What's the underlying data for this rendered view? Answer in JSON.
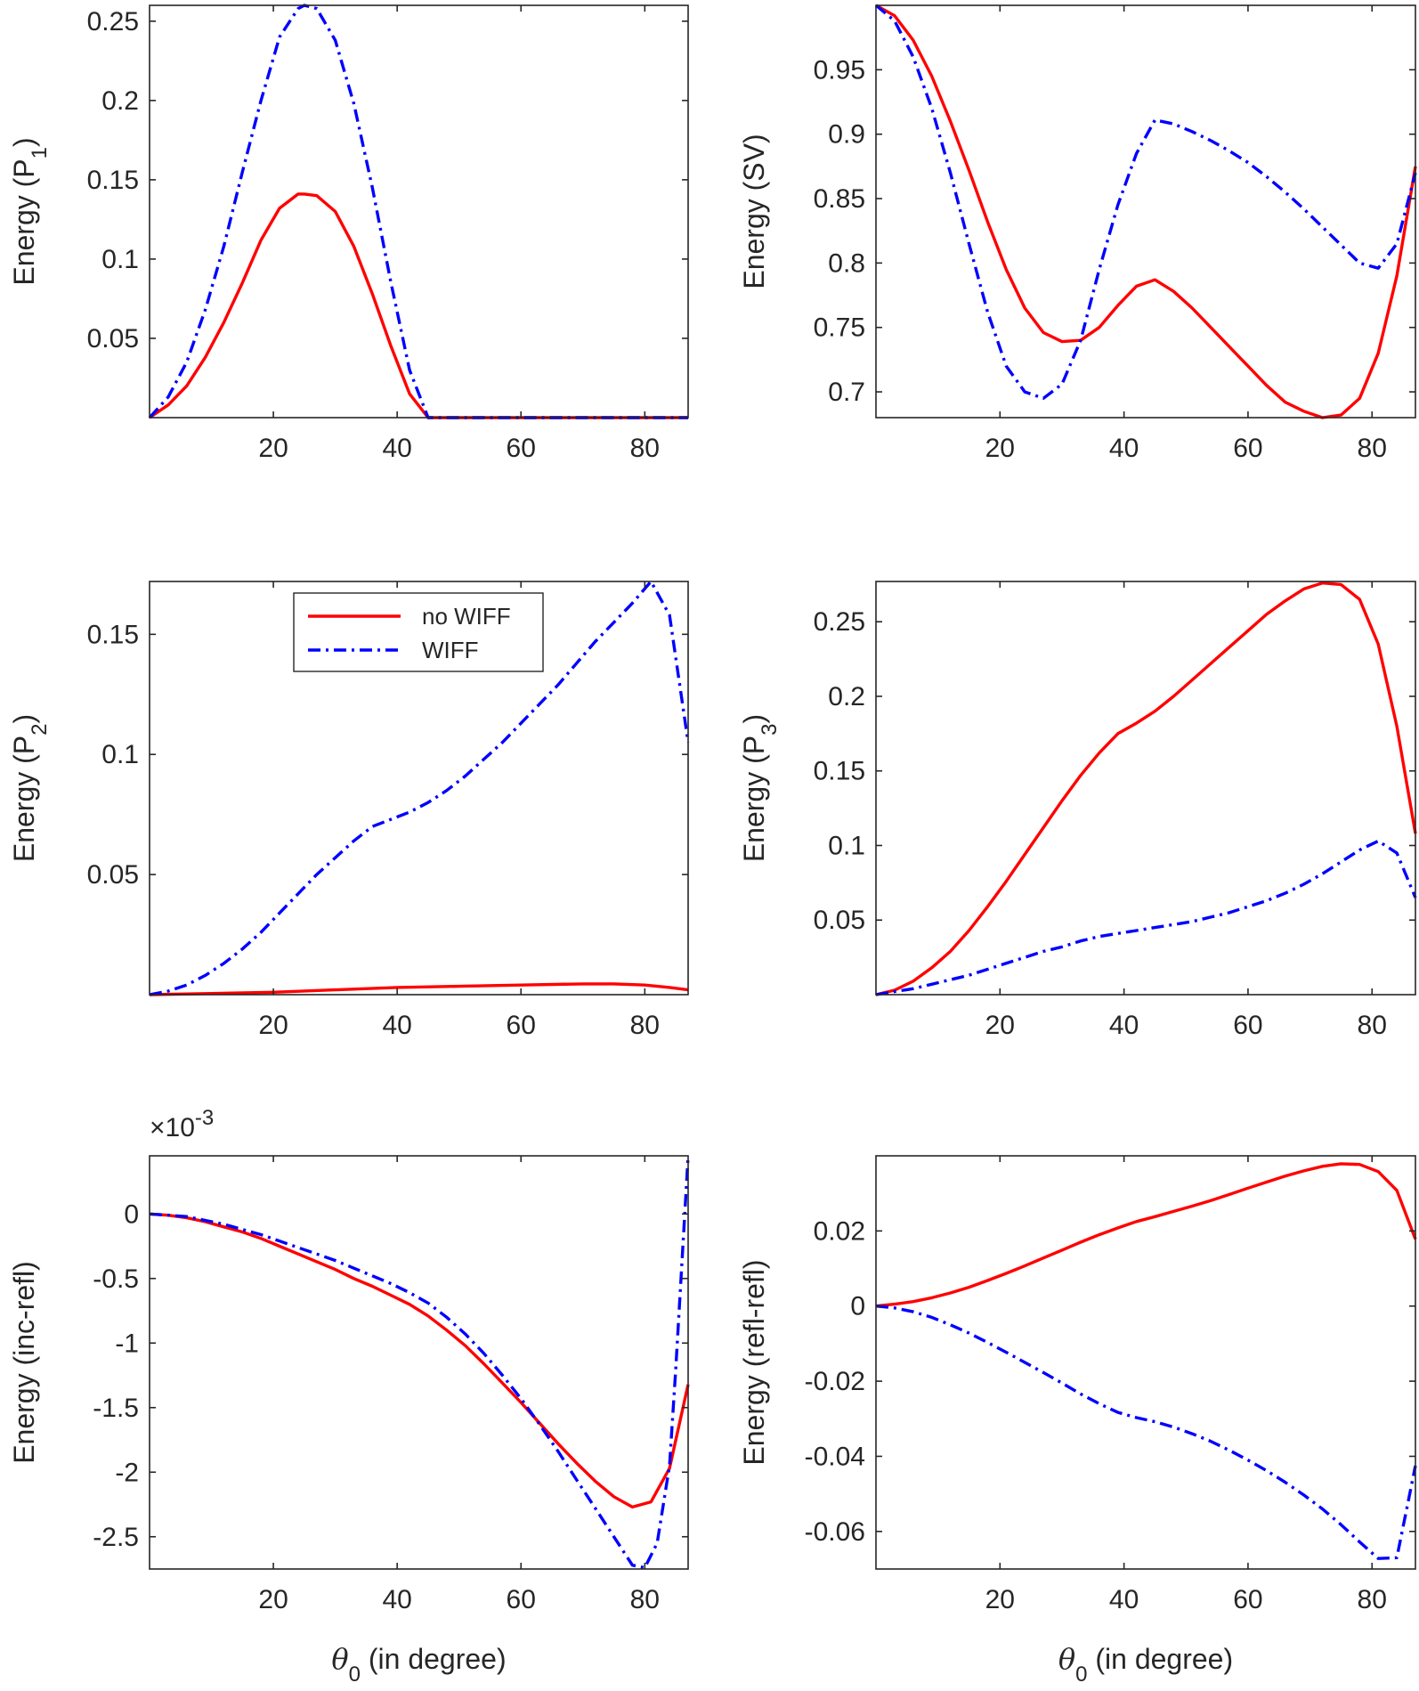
{
  "legend": {
    "entries": [
      {
        "label": "no WIFF",
        "color": "#ff0000",
        "style": "solid"
      },
      {
        "label": "WIFF",
        "color": "#0000ff",
        "style": "dashdot"
      }
    ],
    "placement": "top-center of panel 3"
  },
  "chart_data": [
    {
      "type": "line",
      "title": "",
      "xlabel": "",
      "ylabel": "Energy (P1)",
      "ylabel_parts": [
        "Energy (P",
        "1",
        ")"
      ],
      "xlim": [
        0,
        87
      ],
      "ylim": [
        0,
        0.26
      ],
      "xticks": [
        20,
        40,
        60,
        80
      ],
      "xtick_labels": [
        "20",
        "40",
        "60",
        "80"
      ],
      "yticks": [
        0.05,
        0.1,
        0.15,
        0.2,
        0.25
      ],
      "ytick_labels": [
        "0.05",
        "0.1",
        "0.15",
        "0.2",
        "0.25"
      ],
      "series": [
        {
          "name": "no WIFF",
          "x": [
            0,
            3,
            6,
            9,
            12,
            15,
            18,
            21,
            24,
            25,
            27,
            30,
            33,
            36,
            39,
            42,
            45,
            87
          ],
          "y": [
            0,
            0.008,
            0.02,
            0.038,
            0.06,
            0.085,
            0.112,
            0.132,
            0.141,
            0.141,
            0.14,
            0.13,
            0.108,
            0.078,
            0.045,
            0.015,
            0,
            0
          ]
        },
        {
          "name": "WIFF",
          "x": [
            0,
            3,
            6,
            9,
            12,
            15,
            18,
            21,
            24,
            25,
            27,
            30,
            33,
            36,
            39,
            42,
            45,
            87
          ],
          "y": [
            0,
            0.013,
            0.035,
            0.068,
            0.108,
            0.155,
            0.2,
            0.24,
            0.258,
            0.26,
            0.258,
            0.238,
            0.198,
            0.145,
            0.085,
            0.03,
            0,
            0
          ]
        }
      ]
    },
    {
      "type": "line",
      "title": "",
      "xlabel": "",
      "ylabel": "Energy (SV)",
      "ylabel_parts": [
        "Energy (SV)",
        "",
        ""
      ],
      "xlim": [
        0,
        87
      ],
      "ylim": [
        0.68,
        1.0
      ],
      "xticks": [
        20,
        40,
        60,
        80
      ],
      "xtick_labels": [
        "20",
        "40",
        "60",
        "80"
      ],
      "yticks": [
        0.7,
        0.75,
        0.8,
        0.85,
        0.9,
        0.95
      ],
      "ytick_labels": [
        "0.7",
        "0.75",
        "0.8",
        "0.85",
        "0.9",
        "0.95"
      ],
      "series": [
        {
          "name": "no WIFF",
          "x": [
            0,
            3,
            6,
            9,
            12,
            15,
            18,
            21,
            24,
            27,
            30,
            33,
            36,
            39,
            42,
            45,
            48,
            51,
            54,
            57,
            60,
            63,
            66,
            69,
            72,
            75,
            78,
            81,
            84,
            87
          ],
          "y": [
            1.0,
            0.992,
            0.973,
            0.945,
            0.91,
            0.872,
            0.832,
            0.795,
            0.765,
            0.746,
            0.739,
            0.74,
            0.75,
            0.767,
            0.782,
            0.787,
            0.778,
            0.765,
            0.75,
            0.735,
            0.72,
            0.705,
            0.692,
            0.685,
            0.68,
            0.682,
            0.695,
            0.73,
            0.79,
            0.875
          ]
        },
        {
          "name": "WIFF",
          "x": [
            0,
            3,
            6,
            9,
            12,
            15,
            18,
            21,
            24,
            27,
            30,
            33,
            36,
            39,
            42,
            45,
            48,
            51,
            54,
            57,
            60,
            63,
            66,
            69,
            72,
            75,
            78,
            81,
            84,
            87
          ],
          "y": [
            1.0,
            0.988,
            0.96,
            0.92,
            0.87,
            0.815,
            0.762,
            0.72,
            0.7,
            0.695,
            0.706,
            0.74,
            0.795,
            0.845,
            0.885,
            0.911,
            0.908,
            0.902,
            0.895,
            0.887,
            0.878,
            0.867,
            0.855,
            0.842,
            0.828,
            0.814,
            0.8,
            0.796,
            0.815,
            0.87
          ]
        }
      ]
    },
    {
      "type": "line",
      "title": "",
      "xlabel": "",
      "ylabel": "Energy (P2)",
      "ylabel_parts": [
        "Energy (P",
        "2",
        ")"
      ],
      "xlim": [
        0,
        87
      ],
      "ylim": [
        0,
        0.172
      ],
      "xticks": [
        20,
        40,
        60,
        80
      ],
      "xtick_labels": [
        "20",
        "40",
        "60",
        "80"
      ],
      "yticks": [
        0.05,
        0.1,
        0.15
      ],
      "ytick_labels": [
        "0.05",
        "0.1",
        "0.15"
      ],
      "series": [
        {
          "name": "no WIFF",
          "x": [
            0,
            10,
            20,
            30,
            40,
            50,
            60,
            70,
            75,
            80,
            84,
            87
          ],
          "y": [
            0,
            0.0005,
            0.001,
            0.002,
            0.003,
            0.0035,
            0.004,
            0.0045,
            0.0045,
            0.004,
            0.003,
            0.002
          ]
        },
        {
          "name": "WIFF",
          "x": [
            0,
            3,
            6,
            9,
            12,
            15,
            18,
            21,
            24,
            27,
            30,
            33,
            36,
            39,
            42,
            45,
            48,
            51,
            54,
            57,
            60,
            63,
            66,
            69,
            72,
            75,
            78,
            81,
            84,
            87
          ],
          "y": [
            0,
            0.0015,
            0.004,
            0.008,
            0.013,
            0.019,
            0.026,
            0.034,
            0.042,
            0.05,
            0.057,
            0.064,
            0.07,
            0.073,
            0.076,
            0.08,
            0.085,
            0.091,
            0.098,
            0.105,
            0.113,
            0.121,
            0.129,
            0.138,
            0.147,
            0.155,
            0.163,
            0.172,
            0.158,
            0.105
          ]
        }
      ]
    },
    {
      "type": "line",
      "title": "",
      "xlabel": "",
      "ylabel": "Energy (P3)",
      "ylabel_parts": [
        "Energy (P",
        "3",
        ")"
      ],
      "xlim": [
        0,
        87
      ],
      "ylim": [
        0,
        0.277
      ],
      "xticks": [
        20,
        40,
        60,
        80
      ],
      "xtick_labels": [
        "20",
        "40",
        "60",
        "80"
      ],
      "yticks": [
        0.05,
        0.1,
        0.15,
        0.2,
        0.25
      ],
      "ytick_labels": [
        "0.05",
        "0.1",
        "0.15",
        "0.2",
        "0.25"
      ],
      "series": [
        {
          "name": "no WIFF",
          "x": [
            0,
            3,
            6,
            9,
            12,
            15,
            18,
            21,
            24,
            27,
            30,
            33,
            36,
            39,
            42,
            45,
            48,
            51,
            54,
            57,
            60,
            63,
            66,
            69,
            72,
            75,
            78,
            81,
            84,
            87
          ],
          "y": [
            0,
            0.003,
            0.009,
            0.018,
            0.029,
            0.043,
            0.059,
            0.076,
            0.094,
            0.112,
            0.13,
            0.147,
            0.162,
            0.175,
            0.182,
            0.19,
            0.2,
            0.211,
            0.222,
            0.233,
            0.244,
            0.255,
            0.264,
            0.272,
            0.276,
            0.275,
            0.265,
            0.235,
            0.18,
            0.108
          ]
        },
        {
          "name": "WIFF",
          "x": [
            0,
            3,
            6,
            9,
            12,
            15,
            18,
            21,
            24,
            27,
            30,
            33,
            36,
            39,
            42,
            45,
            48,
            51,
            54,
            57,
            60,
            63,
            66,
            69,
            72,
            75,
            78,
            81,
            84,
            87
          ],
          "y": [
            0,
            0.002,
            0.004,
            0.007,
            0.01,
            0.013,
            0.017,
            0.021,
            0.025,
            0.029,
            0.032,
            0.036,
            0.039,
            0.041,
            0.043,
            0.045,
            0.047,
            0.049,
            0.052,
            0.055,
            0.059,
            0.063,
            0.068,
            0.074,
            0.081,
            0.089,
            0.097,
            0.103,
            0.095,
            0.065
          ]
        }
      ]
    },
    {
      "type": "line",
      "title": "",
      "xlabel": "θ0 (in degree)",
      "ylabel": "Energy (inc-refl)",
      "ylabel_parts": [
        "Energy (inc-refl)",
        "",
        ""
      ],
      "axis_multiplier": "×10-3",
      "xlim": [
        0,
        87
      ],
      "ylim": [
        -2.75,
        0.45
      ],
      "xticks": [
        20,
        40,
        60,
        80
      ],
      "xtick_labels": [
        "20",
        "40",
        "60",
        "80"
      ],
      "yticks": [
        -2.5,
        -2,
        -1.5,
        -1,
        -0.5,
        0
      ],
      "ytick_labels": [
        "-2.5",
        "-2",
        "-1.5",
        "-1",
        "-0.5",
        "0"
      ],
      "series": [
        {
          "name": "no WIFF",
          "x": [
            0,
            3,
            6,
            9,
            12,
            15,
            18,
            21,
            24,
            27,
            30,
            33,
            36,
            39,
            42,
            45,
            48,
            51,
            54,
            57,
            60,
            63,
            66,
            69,
            72,
            75,
            78,
            81,
            84,
            87
          ],
          "y": [
            0,
            -0.01,
            -0.03,
            -0.06,
            -0.1,
            -0.14,
            -0.19,
            -0.25,
            -0.31,
            -0.37,
            -0.43,
            -0.5,
            -0.56,
            -0.63,
            -0.7,
            -0.79,
            -0.9,
            -1.02,
            -1.16,
            -1.31,
            -1.46,
            -1.62,
            -1.78,
            -1.93,
            -2.07,
            -2.19,
            -2.27,
            -2.23,
            -1.97,
            -1.32
          ]
        },
        {
          "name": "WIFF",
          "x": [
            0,
            3,
            6,
            9,
            12,
            15,
            18,
            21,
            24,
            27,
            30,
            33,
            36,
            39,
            42,
            45,
            48,
            51,
            54,
            57,
            60,
            63,
            66,
            69,
            72,
            75,
            78,
            80,
            82,
            84,
            85,
            87
          ],
          "y": [
            0,
            -0.01,
            -0.02,
            -0.05,
            -0.08,
            -0.12,
            -0.16,
            -0.21,
            -0.26,
            -0.31,
            -0.36,
            -0.42,
            -0.48,
            -0.54,
            -0.61,
            -0.69,
            -0.8,
            -0.93,
            -1.08,
            -1.25,
            -1.43,
            -1.63,
            -1.84,
            -2.06,
            -2.28,
            -2.5,
            -2.72,
            -2.74,
            -2.55,
            -1.95,
            -1.2,
            0.45
          ]
        }
      ]
    },
    {
      "type": "line",
      "title": "",
      "xlabel": "θ0 (in degree)",
      "ylabel": "Energy (refl-refl)",
      "ylabel_parts": [
        "Energy (refl-refl)",
        "",
        ""
      ],
      "xlim": [
        0,
        87
      ],
      "ylim": [
        -0.07,
        0.04
      ],
      "xticks": [
        20,
        40,
        60,
        80
      ],
      "xtick_labels": [
        "20",
        "40",
        "60",
        "80"
      ],
      "yticks": [
        -0.06,
        -0.04,
        -0.02,
        0,
        0.02
      ],
      "ytick_labels": [
        "-0.06",
        "-0.04",
        "-0.02",
        "0",
        "0.02"
      ],
      "series": [
        {
          "name": "no WIFF",
          "x": [
            0,
            3,
            6,
            9,
            12,
            15,
            18,
            21,
            24,
            27,
            30,
            33,
            36,
            39,
            42,
            45,
            48,
            51,
            54,
            57,
            60,
            63,
            66,
            69,
            72,
            75,
            78,
            81,
            84,
            87
          ],
          "y": [
            0,
            0.0005,
            0.0012,
            0.0022,
            0.0035,
            0.005,
            0.0068,
            0.0087,
            0.0107,
            0.0128,
            0.0149,
            0.017,
            0.019,
            0.0208,
            0.0225,
            0.0238,
            0.0252,
            0.0266,
            0.0281,
            0.0297,
            0.0314,
            0.033,
            0.0346,
            0.036,
            0.0372,
            0.0379,
            0.0377,
            0.0358,
            0.0308,
            0.0178
          ]
        },
        {
          "name": "WIFF",
          "x": [
            0,
            3,
            6,
            9,
            12,
            15,
            18,
            21,
            24,
            27,
            30,
            33,
            36,
            39,
            42,
            45,
            48,
            51,
            54,
            57,
            60,
            63,
            66,
            69,
            72,
            75,
            78,
            81,
            84,
            87
          ],
          "y": [
            0,
            -0.0005,
            -0.0015,
            -0.003,
            -0.005,
            -0.0072,
            -0.0097,
            -0.0123,
            -0.015,
            -0.0177,
            -0.0205,
            -0.0234,
            -0.026,
            -0.0283,
            -0.0297,
            -0.0308,
            -0.0322,
            -0.034,
            -0.036,
            -0.0384,
            -0.041,
            -0.0438,
            -0.0469,
            -0.0503,
            -0.054,
            -0.0582,
            -0.0628,
            -0.0672,
            -0.067,
            -0.0425
          ]
        }
      ]
    }
  ]
}
